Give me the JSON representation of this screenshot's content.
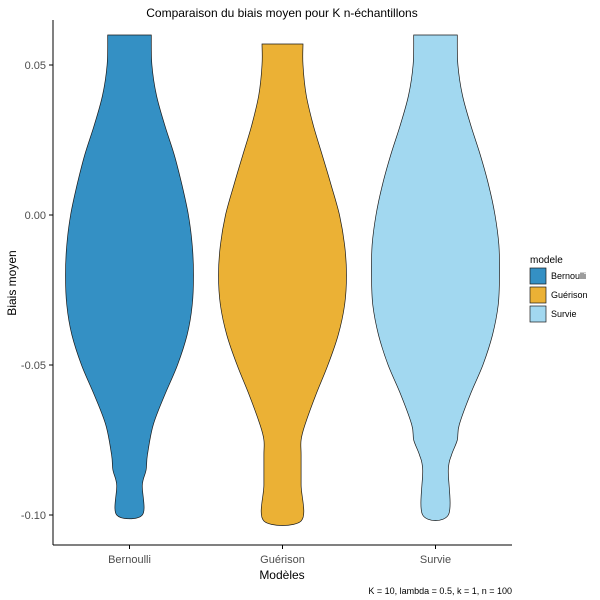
{
  "chart_data": {
    "type": "violin",
    "title": "Comparaison du biais moyen pour K n-échantillons",
    "xlabel": "Modèles",
    "ylabel": "Biais moyen",
    "caption": "K = 10, lambda = 0.5, k = 1, n = 100",
    "categories": [
      "Bernoulli",
      "Guérison",
      "Survie"
    ],
    "ylim": [
      -0.11,
      0.065
    ],
    "yticks": [
      0.05,
      0.0,
      -0.05,
      -0.1
    ],
    "ytick_labels": [
      "0.05",
      "0.00",
      "-0.05",
      "-0.10"
    ],
    "grid": false,
    "legend": {
      "title": "modele",
      "position": "right",
      "entries": [
        "Bernoulli",
        "Guérison",
        "Survie"
      ]
    },
    "colors": {
      "Bernoulli": "#3490C4",
      "Guérison": "#EBB135",
      "Survie": "#A2D8F0"
    },
    "series": [
      {
        "name": "Bernoulli",
        "min": -0.1,
        "max": 0.06,
        "density_profile": [
          [
            0.06,
            0.34
          ],
          [
            0.05,
            0.35
          ],
          [
            0.04,
            0.42
          ],
          [
            0.03,
            0.55
          ],
          [
            0.02,
            0.7
          ],
          [
            0.01,
            0.82
          ],
          [
            0.0,
            0.92
          ],
          [
            -0.01,
            0.98
          ],
          [
            -0.02,
            1.0
          ],
          [
            -0.03,
            0.98
          ],
          [
            -0.04,
            0.9
          ],
          [
            -0.05,
            0.75
          ],
          [
            -0.06,
            0.55
          ],
          [
            -0.07,
            0.37
          ],
          [
            -0.08,
            0.28
          ],
          [
            -0.085,
            0.26
          ],
          [
            -0.09,
            0.2
          ],
          [
            -0.1,
            0.2
          ]
        ]
      },
      {
        "name": "Guérison",
        "min": -0.102,
        "max": 0.057,
        "density_profile": [
          [
            0.057,
            0.32
          ],
          [
            0.05,
            0.32
          ],
          [
            0.04,
            0.37
          ],
          [
            0.03,
            0.48
          ],
          [
            0.02,
            0.62
          ],
          [
            0.01,
            0.76
          ],
          [
            0.0,
            0.89
          ],
          [
            -0.01,
            0.97
          ],
          [
            -0.02,
            1.0
          ],
          [
            -0.03,
            0.97
          ],
          [
            -0.04,
            0.87
          ],
          [
            -0.05,
            0.71
          ],
          [
            -0.06,
            0.52
          ],
          [
            -0.07,
            0.35
          ],
          [
            -0.075,
            0.29
          ],
          [
            -0.08,
            0.29
          ],
          [
            -0.09,
            0.29
          ],
          [
            -0.102,
            0.29
          ]
        ]
      },
      {
        "name": "Survie",
        "min": -0.1,
        "max": 0.06,
        "density_profile": [
          [
            0.06,
            0.34
          ],
          [
            0.05,
            0.35
          ],
          [
            0.04,
            0.42
          ],
          [
            0.03,
            0.55
          ],
          [
            0.02,
            0.7
          ],
          [
            0.01,
            0.83
          ],
          [
            0.0,
            0.93
          ],
          [
            -0.01,
            0.99
          ],
          [
            -0.02,
            1.0
          ],
          [
            -0.03,
            0.98
          ],
          [
            -0.04,
            0.89
          ],
          [
            -0.05,
            0.74
          ],
          [
            -0.06,
            0.54
          ],
          [
            -0.07,
            0.37
          ],
          [
            -0.075,
            0.34
          ],
          [
            -0.08,
            0.25
          ],
          [
            -0.085,
            0.2
          ],
          [
            -0.1,
            0.2
          ]
        ]
      }
    ]
  }
}
